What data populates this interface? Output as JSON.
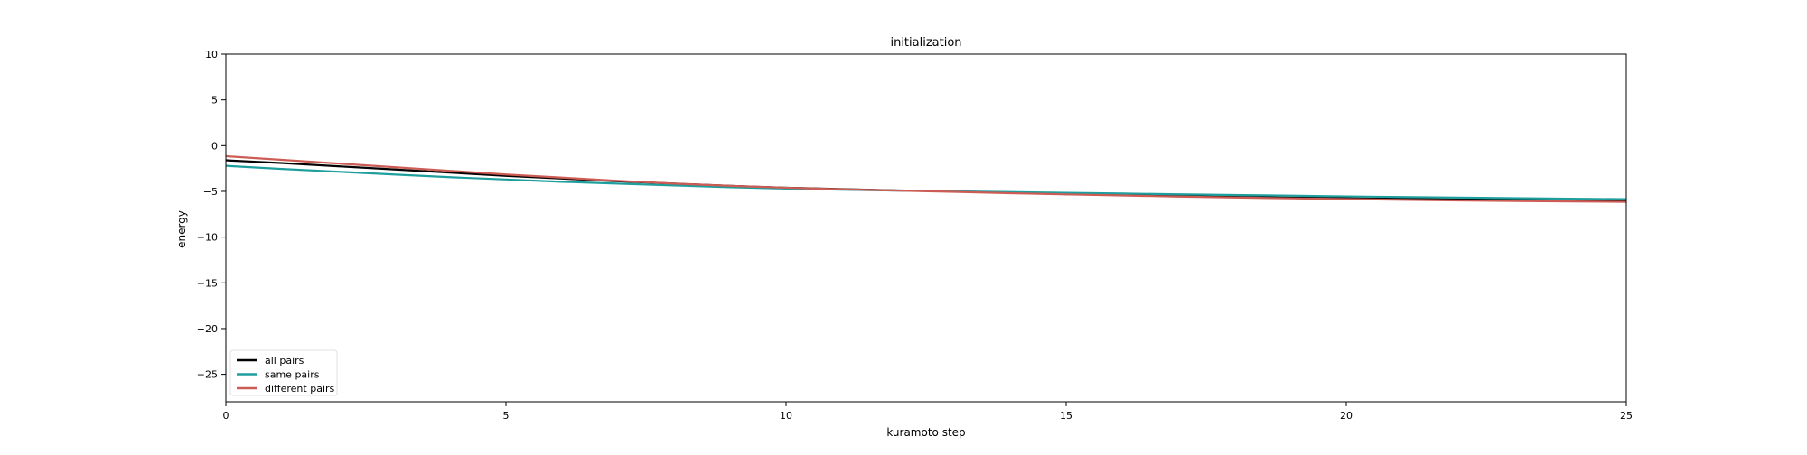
{
  "chart_data": {
    "type": "line",
    "title": "initialization",
    "xlabel": "kuramoto step",
    "ylabel": "energy",
    "xlim": [
      0,
      25
    ],
    "ylim": [
      -28,
      10
    ],
    "xticks": [
      0,
      5,
      10,
      15,
      20,
      25
    ],
    "yticks": [
      10,
      5,
      0,
      -5,
      -10,
      -15,
      -20,
      -25
    ],
    "grid": false,
    "legend_position": "bottom-left",
    "x": [
      0,
      1,
      2,
      3,
      4,
      5,
      6,
      7,
      8,
      9,
      10,
      11,
      12,
      13,
      14,
      15,
      16,
      17,
      18,
      19,
      20,
      21,
      22,
      23,
      24,
      25
    ],
    "series": [
      {
        "name": "all pairs",
        "color": "#000000",
        "values": [
          -1.6,
          -1.9,
          -2.25,
          -2.6,
          -2.95,
          -3.3,
          -3.6,
          -3.9,
          -4.15,
          -4.4,
          -4.6,
          -4.75,
          -4.9,
          -5.0,
          -5.15,
          -5.3,
          -5.4,
          -5.5,
          -5.6,
          -5.68,
          -5.75,
          -5.82,
          -5.88,
          -5.93,
          -5.97,
          -6.0
        ]
      },
      {
        "name": "same pairs",
        "color": "#1f9e9e",
        "values": [
          -2.2,
          -2.55,
          -2.85,
          -3.15,
          -3.45,
          -3.7,
          -3.95,
          -4.15,
          -4.35,
          -4.55,
          -4.7,
          -4.82,
          -4.92,
          -5.0,
          -5.08,
          -5.16,
          -5.24,
          -5.32,
          -5.4,
          -5.47,
          -5.55,
          -5.62,
          -5.68,
          -5.74,
          -5.8,
          -5.85
        ]
      },
      {
        "name": "different pairs",
        "color": "#cd5c55",
        "values": [
          -1.15,
          -1.55,
          -1.95,
          -2.35,
          -2.75,
          -3.15,
          -3.5,
          -3.85,
          -4.15,
          -4.4,
          -4.6,
          -4.78,
          -4.92,
          -5.05,
          -5.2,
          -5.33,
          -5.45,
          -5.57,
          -5.67,
          -5.76,
          -5.84,
          -5.92,
          -5.99,
          -6.05,
          -6.1,
          -6.15
        ]
      }
    ]
  }
}
